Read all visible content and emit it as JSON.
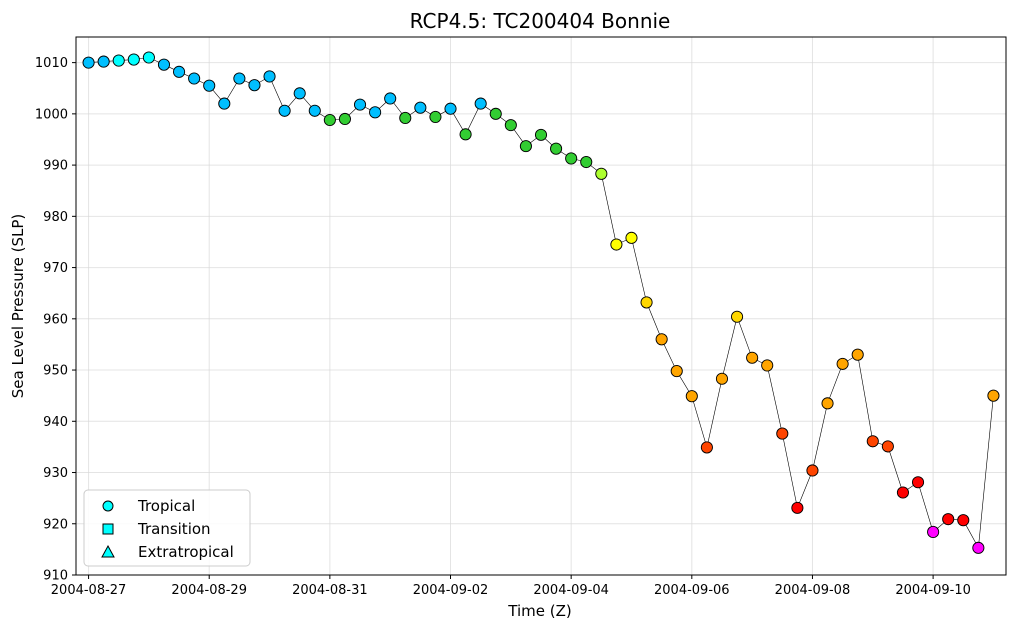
{
  "chart_data": {
    "type": "scatter",
    "title": "RCP4.5: TC200404 Bonnie",
    "xlabel": "Time (Z)",
    "ylabel": "Sea Level Pressure (SLP)",
    "ylim": [
      910,
      1015
    ],
    "xlim": [
      "2004-08-26T19:00",
      "2004-09-11T05:00"
    ],
    "grid": true,
    "connecting_line_color": "#000000",
    "yticks": [
      "910",
      "920",
      "930",
      "940",
      "950",
      "960",
      "970",
      "980",
      "990",
      "1000",
      "1010"
    ],
    "xticks": [
      {
        "date": "2004-08-27T00:00",
        "label": "2004-08-27"
      },
      {
        "date": "2004-08-29T00:00",
        "label": "2004-08-29"
      },
      {
        "date": "2004-08-31T00:00",
        "label": "2004-08-31"
      },
      {
        "date": "2004-09-02T00:00",
        "label": "2004-09-02"
      },
      {
        "date": "2004-09-04T00:00",
        "label": "2004-09-04"
      },
      {
        "date": "2004-09-06T00:00",
        "label": "2004-09-06"
      },
      {
        "date": "2004-09-08T00:00",
        "label": "2004-09-08"
      },
      {
        "date": "2004-09-10T00:00",
        "label": "2004-09-10"
      }
    ],
    "legend": {
      "placement": "lower-left",
      "entries": [
        {
          "label": "Tropical",
          "marker": "circle",
          "color": "#00ffff"
        },
        {
          "label": "Transition",
          "marker": "square",
          "color": "#00ffff"
        },
        {
          "label": "Extratropical",
          "marker": "triangle",
          "color": "#00ffff"
        }
      ]
    },
    "points": [
      {
        "t": "2004-08-27T00:00",
        "y": 1010.0,
        "color": "#00bfff"
      },
      {
        "t": "2004-08-27T06:00",
        "y": 1010.2,
        "color": "#00bfff"
      },
      {
        "t": "2004-08-27T12:00",
        "y": 1010.4,
        "color": "#00ffff"
      },
      {
        "t": "2004-08-27T18:00",
        "y": 1010.6,
        "color": "#00ffff"
      },
      {
        "t": "2004-08-28T00:00",
        "y": 1011.0,
        "color": "#00ffff"
      },
      {
        "t": "2004-08-28T06:00",
        "y": 1009.6,
        "color": "#00bfff"
      },
      {
        "t": "2004-08-28T12:00",
        "y": 1008.2,
        "color": "#00bfff"
      },
      {
        "t": "2004-08-28T18:00",
        "y": 1006.9,
        "color": "#00bfff"
      },
      {
        "t": "2004-08-29T00:00",
        "y": 1005.5,
        "color": "#00bfff"
      },
      {
        "t": "2004-08-29T06:00",
        "y": 1002.0,
        "color": "#00bfff"
      },
      {
        "t": "2004-08-29T12:00",
        "y": 1006.9,
        "color": "#00bfff"
      },
      {
        "t": "2004-08-29T18:00",
        "y": 1005.6,
        "color": "#00bfff"
      },
      {
        "t": "2004-08-30T00:00",
        "y": 1007.3,
        "color": "#00bfff"
      },
      {
        "t": "2004-08-30T06:00",
        "y": 1000.6,
        "color": "#00bfff"
      },
      {
        "t": "2004-08-30T12:00",
        "y": 1004.0,
        "color": "#00bfff"
      },
      {
        "t": "2004-08-30T18:00",
        "y": 1000.6,
        "color": "#00bfff"
      },
      {
        "t": "2004-08-31T00:00",
        "y": 998.8,
        "color": "#32cd32"
      },
      {
        "t": "2004-08-31T06:00",
        "y": 999.0,
        "color": "#32cd32"
      },
      {
        "t": "2004-08-31T12:00",
        "y": 1001.8,
        "color": "#00bfff"
      },
      {
        "t": "2004-08-31T18:00",
        "y": 1000.3,
        "color": "#00bfff"
      },
      {
        "t": "2004-09-01T00:00",
        "y": 1003.0,
        "color": "#00bfff"
      },
      {
        "t": "2004-09-01T06:00",
        "y": 999.2,
        "color": "#32cd32"
      },
      {
        "t": "2004-09-01T12:00",
        "y": 1001.2,
        "color": "#00bfff"
      },
      {
        "t": "2004-09-01T18:00",
        "y": 999.4,
        "color": "#32cd32"
      },
      {
        "t": "2004-09-02T00:00",
        "y": 1001.0,
        "color": "#00bfff"
      },
      {
        "t": "2004-09-02T06:00",
        "y": 996.0,
        "color": "#32cd32"
      },
      {
        "t": "2004-09-02T12:00",
        "y": 1002.0,
        "color": "#00bfff"
      },
      {
        "t": "2004-09-02T18:00",
        "y": 1000.0,
        "color": "#32cd32"
      },
      {
        "t": "2004-09-03T00:00",
        "y": 997.8,
        "color": "#32cd32"
      },
      {
        "t": "2004-09-03T06:00",
        "y": 993.7,
        "color": "#32cd32"
      },
      {
        "t": "2004-09-03T12:00",
        "y": 995.9,
        "color": "#32cd32"
      },
      {
        "t": "2004-09-03T18:00",
        "y": 993.2,
        "color": "#32cd32"
      },
      {
        "t": "2004-09-04T00:00",
        "y": 991.3,
        "color": "#32cd32"
      },
      {
        "t": "2004-09-04T06:00",
        "y": 990.6,
        "color": "#32cd32"
      },
      {
        "t": "2004-09-04T12:00",
        "y": 988.3,
        "color": "#adff2f"
      },
      {
        "t": "2004-09-04T18:00",
        "y": 974.5,
        "color": "#ffff00"
      },
      {
        "t": "2004-09-05T00:00",
        "y": 975.8,
        "color": "#ffff00"
      },
      {
        "t": "2004-09-05T06:00",
        "y": 963.2,
        "color": "#ffd700"
      },
      {
        "t": "2004-09-05T12:00",
        "y": 956.0,
        "color": "#ffa500"
      },
      {
        "t": "2004-09-05T18:00",
        "y": 949.8,
        "color": "#ffa500"
      },
      {
        "t": "2004-09-06T00:00",
        "y": 944.9,
        "color": "#ffa500"
      },
      {
        "t": "2004-09-06T06:00",
        "y": 934.9,
        "color": "#ff4500"
      },
      {
        "t": "2004-09-06T12:00",
        "y": 948.3,
        "color": "#ffa500"
      },
      {
        "t": "2004-09-06T18:00",
        "y": 960.4,
        "color": "#ffd700"
      },
      {
        "t": "2004-09-07T00:00",
        "y": 952.4,
        "color": "#ffa500"
      },
      {
        "t": "2004-09-07T06:00",
        "y": 950.9,
        "color": "#ffa500"
      },
      {
        "t": "2004-09-07T12:00",
        "y": 937.6,
        "color": "#ff4500"
      },
      {
        "t": "2004-09-07T18:00",
        "y": 923.1,
        "color": "#ff0000"
      },
      {
        "t": "2004-09-08T00:00",
        "y": 930.4,
        "color": "#ff4500"
      },
      {
        "t": "2004-09-08T06:00",
        "y": 943.5,
        "color": "#ffa500"
      },
      {
        "t": "2004-09-08T12:00",
        "y": 951.2,
        "color": "#ffa500"
      },
      {
        "t": "2004-09-08T18:00",
        "y": 953.0,
        "color": "#ffa500"
      },
      {
        "t": "2004-09-09T00:00",
        "y": 936.1,
        "color": "#ff4500"
      },
      {
        "t": "2004-09-09T06:00",
        "y": 935.1,
        "color": "#ff4500"
      },
      {
        "t": "2004-09-09T12:00",
        "y": 926.1,
        "color": "#ff0000"
      },
      {
        "t": "2004-09-09T18:00",
        "y": 928.1,
        "color": "#ff0000"
      },
      {
        "t": "2004-09-10T00:00",
        "y": 918.4,
        "color": "#ff00ff"
      },
      {
        "t": "2004-09-10T06:00",
        "y": 920.9,
        "color": "#ff0000"
      },
      {
        "t": "2004-09-10T12:00",
        "y": 920.7,
        "color": "#ff0000"
      },
      {
        "t": "2004-09-10T18:00",
        "y": 915.3,
        "color": "#ff00ff"
      },
      {
        "t": "2004-09-11T00:00",
        "y": 945.0,
        "color": "#ffa500"
      }
    ]
  }
}
